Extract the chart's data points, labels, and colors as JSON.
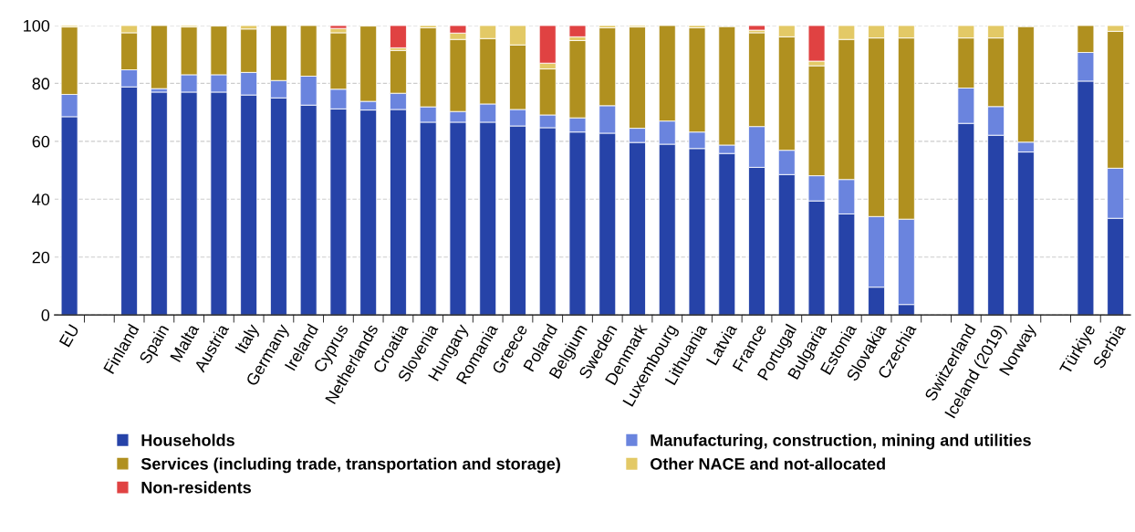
{
  "chart_data": {
    "type": "bar",
    "stacked": true,
    "grid": "y",
    "legend": "bottom",
    "ylim": [
      0,
      100
    ],
    "yticks": [
      0,
      20,
      40,
      60,
      80,
      100
    ],
    "categories": [
      "EU",
      null,
      "Finland",
      "Spain",
      "Malta",
      "Austria",
      "Italy",
      "Germany",
      "Ireland",
      "Cyprus",
      "Netherlands",
      "Croatia",
      "Slovenia",
      "Hungary",
      "Romania",
      "Greece",
      "Poland",
      "Belgium",
      "Sweden",
      "Denmark",
      "Luxembourg",
      "Lithuania",
      "Latvia",
      "France",
      "Portugal",
      "Bulgaria",
      "Estonia",
      "Slovakia",
      "Czechia",
      null,
      "Switzerland",
      "Iceland (2019)",
      "Norway",
      null,
      "Türkiye",
      "Serbia"
    ],
    "series": [
      {
        "name": "Households",
        "color": "#2643a8",
        "values": [
          68.5,
          null,
          78.8,
          77,
          77,
          77,
          76,
          75,
          72.5,
          71.2,
          70.8,
          71.0,
          66.6,
          66.6,
          66.6,
          65.3,
          64.7,
          63.2,
          62.8,
          59.6,
          59.0,
          57.5,
          55.8,
          51.0,
          48.5,
          39.4,
          34.9,
          9.6,
          3.6,
          null,
          66.2,
          62.1,
          56.3,
          null,
          80.8,
          33.4
        ]
      },
      {
        "name": "Manufacturing, construction, mining and utilities",
        "color": "#6a84de",
        "values": [
          7.7,
          null,
          5.9,
          1.2,
          6,
          6,
          7.8,
          6,
          10,
          6.8,
          3,
          5.6,
          5.3,
          3.7,
          6.3,
          5.7,
          4.4,
          4.9,
          9.5,
          4.9,
          8,
          5.7,
          2.9,
          14.1,
          8.4,
          8.7,
          11.9,
          24.4,
          29.5,
          null,
          12.2,
          9.9,
          3.4,
          null,
          9.9,
          17.3
        ]
      },
      {
        "name": "Services (including trade, transportation and storage)",
        "color": "#b0901f",
        "values": [
          23.3,
          null,
          12.8,
          21.8,
          16.5,
          16.8,
          15,
          19,
          17.5,
          19.5,
          26,
          14.8,
          27.3,
          24.9,
          22.6,
          22.3,
          15.9,
          26.7,
          26.9,
          35,
          33,
          36,
          40.9,
          32.4,
          39.2,
          38,
          48.4,
          61.7,
          62.6,
          null,
          17.3,
          23.7,
          39.9,
          null,
          9.3,
          47.3
        ]
      },
      {
        "name": "Other NACE and not-allocated",
        "color": "#e3c966",
        "values": [
          0.5,
          null,
          2.5,
          0,
          0.5,
          0,
          1.2,
          0,
          0,
          1.5,
          0,
          0.9,
          0.8,
          2.2,
          4.5,
          6.7,
          2,
          1.3,
          0.8,
          0.5,
          0,
          0.8,
          0,
          0.9,
          3.9,
          1.6,
          4.8,
          4.3,
          4.3,
          null,
          4.3,
          4.3,
          0,
          null,
          0,
          2
        ]
      },
      {
        "name": "Non-residents",
        "color": "#e04242",
        "values": [
          0,
          null,
          0,
          0,
          0,
          0,
          0,
          0,
          0,
          1,
          0,
          7.7,
          0,
          2.6,
          0,
          0,
          13,
          3.9,
          0,
          0,
          0,
          0,
          0,
          1.6,
          0,
          12.3,
          0,
          0,
          0,
          null,
          0,
          0,
          0,
          null,
          0,
          0
        ]
      }
    ]
  }
}
